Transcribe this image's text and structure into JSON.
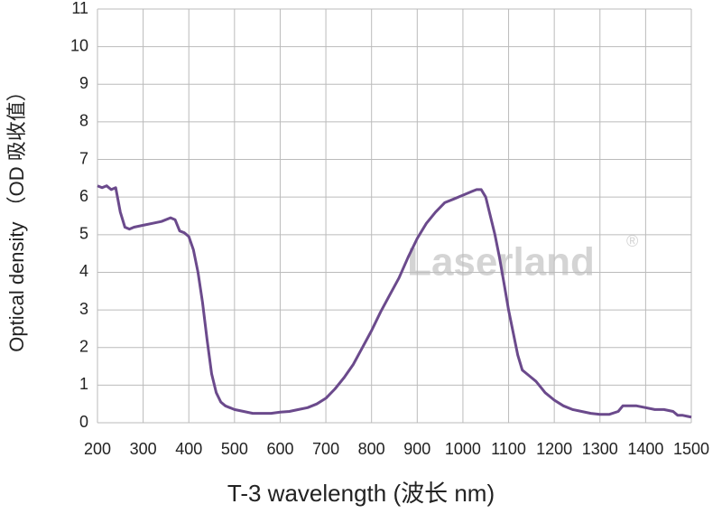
{
  "chart_data": {
    "type": "line",
    "x_label": "T-3 wavelength  (波长  nm)",
    "y_label": "Optical density （OD 吸收值）",
    "annotations": [
      "Laserland",
      "®"
    ],
    "x": [
      200,
      210,
      220,
      230,
      240,
      250,
      260,
      270,
      280,
      300,
      320,
      340,
      360,
      370,
      380,
      390,
      400,
      410,
      420,
      430,
      440,
      450,
      460,
      470,
      480,
      500,
      520,
      540,
      560,
      580,
      600,
      620,
      640,
      660,
      680,
      700,
      720,
      740,
      760,
      780,
      800,
      820,
      840,
      860,
      880,
      900,
      920,
      940,
      960,
      980,
      1000,
      1020,
      1030,
      1040,
      1050,
      1060,
      1070,
      1080,
      1090,
      1100,
      1110,
      1120,
      1130,
      1140,
      1150,
      1160,
      1170,
      1180,
      1200,
      1220,
      1240,
      1260,
      1280,
      1300,
      1320,
      1340,
      1350,
      1360,
      1380,
      1400,
      1420,
      1440,
      1460,
      1470,
      1480,
      1500
    ],
    "series": [
      {
        "name": "T-3",
        "color": "#6b4a8c",
        "values": [
          6.3,
          6.25,
          6.3,
          6.2,
          6.25,
          5.6,
          5.2,
          5.15,
          5.2,
          5.25,
          5.3,
          5.35,
          5.45,
          5.4,
          5.1,
          5.05,
          4.95,
          4.6,
          4.0,
          3.2,
          2.2,
          1.3,
          0.8,
          0.55,
          0.45,
          0.35,
          0.3,
          0.25,
          0.25,
          0.25,
          0.28,
          0.3,
          0.35,
          0.4,
          0.5,
          0.65,
          0.9,
          1.2,
          1.55,
          2.0,
          2.45,
          2.95,
          3.4,
          3.85,
          4.4,
          4.9,
          5.3,
          5.6,
          5.85,
          5.95,
          6.05,
          6.15,
          6.2,
          6.2,
          6.0,
          5.5,
          5.0,
          4.4,
          3.7,
          3.0,
          2.4,
          1.8,
          1.4,
          1.3,
          1.2,
          1.1,
          0.95,
          0.8,
          0.6,
          0.45,
          0.35,
          0.3,
          0.25,
          0.22,
          0.22,
          0.3,
          0.45,
          0.45,
          0.45,
          0.4,
          0.35,
          0.35,
          0.3,
          0.2,
          0.2,
          0.15
        ]
      }
    ],
    "xlim": [
      200,
      1500
    ],
    "xticks": [
      200,
      300,
      400,
      500,
      600,
      700,
      800,
      900,
      1000,
      1100,
      1200,
      1300,
      1400,
      1500
    ],
    "ylim": [
      0,
      11
    ],
    "yticks": [
      0,
      1,
      2,
      3,
      4,
      5,
      6,
      7,
      8,
      9,
      10,
      11
    ],
    "grid": true
  }
}
